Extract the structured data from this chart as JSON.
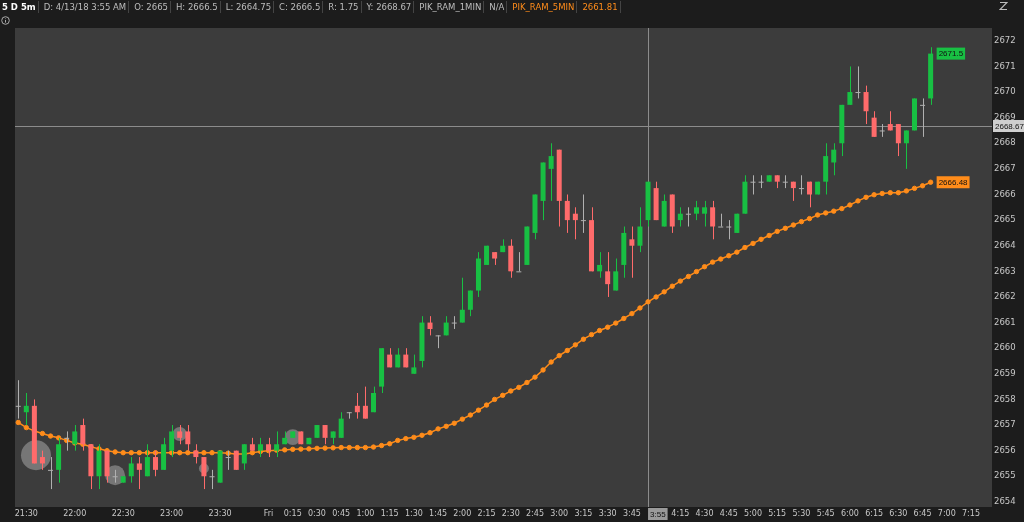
{
  "chart_data": {
    "type": "candlestick",
    "title": "5 D 5m",
    "annotations": [
      "D: 4/13/18 3:55 AM",
      "O: 2665",
      "H: 2666.5",
      "L: 2664.75",
      "C: 2666.5",
      "R: 1.75",
      "Y: 2668.67",
      "PIK_RAM_1MIN",
      "N/A",
      "2661.81",
      {
        "text": "2671.5",
        "x": "--04-13T06:50",
        "y": 2671.5
      },
      {
        "text": "2666.48",
        "x": "--04-13T06:50",
        "y": 2666.48
      }
    ],
    "x": [
      "--04-12T21:25",
      "--04-12T21:30",
      "--04-12T21:35",
      "--04-12T21:40",
      "--04-12T21:45",
      "--04-12T21:50",
      "--04-12T21:55",
      "--04-12T22:00",
      "--04-12T22:05",
      "--04-12T22:10",
      "--04-12T22:15",
      "--04-12T22:20",
      "--04-12T22:25",
      "--04-12T22:30",
      "--04-12T22:35",
      "--04-12T22:40",
      "--04-12T22:45",
      "--04-12T22:50",
      "--04-12T22:55",
      "--04-12T23:00",
      "--04-12T23:05",
      "--04-12T23:10",
      "--04-12T23:15",
      "--04-12T23:20",
      "--04-12T23:25",
      "--04-12T23:30",
      "--04-12T23:35",
      "--04-12T23:40",
      "--04-12T23:45",
      "--04-12T23:50",
      "--04-12T23:55",
      "--04-13T00:00",
      "--04-13T00:05",
      "--04-13T00:10",
      "--04-13T00:15",
      "--04-13T00:20",
      "--04-13T00:25",
      "--04-13T00:30",
      "--04-13T00:35",
      "--04-13T00:40",
      "--04-13T00:45",
      "--04-13T00:50",
      "--04-13T00:55",
      "--04-13T01:00",
      "--04-13T01:05",
      "--04-13T01:10",
      "--04-13T01:15",
      "--04-13T01:20",
      "--04-13T01:25",
      "--04-13T01:30",
      "--04-13T01:35",
      "--04-13T01:40",
      "--04-13T01:45",
      "--04-13T01:50",
      "--04-13T01:55",
      "--04-13T02:00",
      "--04-13T02:05",
      "--04-13T02:10",
      "--04-13T02:15",
      "--04-13T02:20",
      "--04-13T02:25",
      "--04-13T02:30",
      "--04-13T02:35",
      "--04-13T02:40",
      "--04-13T02:45",
      "--04-13T02:50",
      "--04-13T02:55",
      "--04-13T03:00",
      "--04-13T03:05",
      "--04-13T03:10",
      "--04-13T03:15",
      "--04-13T03:20",
      "--04-13T03:25",
      "--04-13T03:30",
      "--04-13T03:35",
      "--04-13T03:40",
      "--04-13T03:45",
      "--04-13T03:50",
      "--04-13T03:55",
      "--04-13T04:00",
      "--04-13T04:05",
      "--04-13T04:10",
      "--04-13T04:15",
      "--04-13T04:20",
      "--04-13T04:25",
      "--04-13T04:30",
      "--04-13T04:35",
      "--04-13T04:40",
      "--04-13T04:45",
      "--04-13T04:50",
      "--04-13T04:55",
      "--04-13T05:00",
      "--04-13T05:05",
      "--04-13T05:10",
      "--04-13T05:15",
      "--04-13T05:20",
      "--04-13T05:25",
      "--04-13T05:30",
      "--04-13T05:35",
      "--04-13T05:40",
      "--04-13T05:45",
      "--04-13T05:50",
      "--04-13T05:55",
      "--04-13T06:00",
      "--04-13T06:05",
      "--04-13T06:10",
      "--04-13T06:15",
      "--04-13T06:20",
      "--04-13T06:25",
      "--04-13T06:30",
      "--04-13T06:35",
      "--04-13T06:40",
      "--04-13T06:45",
      "--04-13T06:50"
    ],
    "ohlc": [
      [
        2657.75,
        2658.75,
        2657.25,
        2657.75
      ],
      [
        2657.5,
        2658.25,
        2657,
        2657.75
      ],
      [
        2657.75,
        2658,
        2655.5,
        2655.5
      ],
      [
        2655.75,
        2656,
        2655.25,
        2655.5
      ],
      [
        2655.25,
        2655.75,
        2654.5,
        2655.25
      ],
      [
        2655.25,
        2656.5,
        2654.75,
        2656.25
      ],
      [
        2656.5,
        2656.75,
        2656,
        2656.5
      ],
      [
        2656.25,
        2657,
        2656,
        2656.75
      ],
      [
        2657,
        2657.25,
        2656,
        2656.25
      ],
      [
        2656.25,
        2656.25,
        2654.5,
        2655
      ],
      [
        2655,
        2656.25,
        2654.5,
        2656
      ],
      [
        2656,
        2656,
        2654.75,
        2655
      ],
      [
        2655,
        2655.25,
        2654.75,
        2655
      ],
      [
        2654.75,
        2655,
        2654.75,
        2655
      ],
      [
        2655,
        2655.75,
        2654.75,
        2655.5
      ],
      [
        2655.5,
        2655.75,
        2654.5,
        2655.25
      ],
      [
        2655,
        2656.25,
        2655,
        2655.75
      ],
      [
        2655.75,
        2656,
        2655,
        2655.25
      ],
      [
        2655.25,
        2656.5,
        2655.25,
        2656.25
      ],
      [
        2656,
        2657,
        2655.75,
        2656.75
      ],
      [
        2656.75,
        2657,
        2656.25,
        2656.5
      ],
      [
        2656.75,
        2657,
        2656,
        2656.25
      ],
      [
        2656,
        2656.25,
        2655.5,
        2655.75
      ],
      [
        2655.75,
        2655.75,
        2654.5,
        2655
      ],
      [
        2655,
        2655.25,
        2654.5,
        2655
      ],
      [
        2654.75,
        2656,
        2654.75,
        2656
      ],
      [
        2655.75,
        2656,
        2655.25,
        2655.75
      ],
      [
        2656,
        2656,
        2655.25,
        2655.25
      ],
      [
        2655.5,
        2656.25,
        2655.25,
        2656.25
      ],
      [
        2656.25,
        2656.5,
        2656,
        2656
      ],
      [
        2656,
        2656.5,
        2655.75,
        2656.25
      ],
      [
        2656.25,
        2656.5,
        2655.75,
        2656
      ],
      [
        2656,
        2656.75,
        2655.75,
        2656.25
      ],
      [
        2656.25,
        2656.75,
        2656.25,
        2656.5
      ],
      [
        2656.5,
        2656.75,
        2656.5,
        2656.75
      ],
      [
        2656.75,
        2656.75,
        2656.25,
        2656.25
      ],
      [
        2656.25,
        2656.5,
        2656.25,
        2656.5
      ],
      [
        2656.5,
        2657,
        2656.5,
        2657
      ],
      [
        2657,
        2657,
        2656.25,
        2656.5
      ],
      [
        2656.5,
        2656.75,
        2656.25,
        2656.75
      ],
      [
        2656.5,
        2657.5,
        2656.5,
        2657.25
      ],
      [
        2657.5,
        2657.5,
        2657.25,
        2657.5
      ],
      [
        2657.75,
        2658.25,
        2657.25,
        2657.5
      ],
      [
        2657.75,
        2658.5,
        2657.25,
        2657.25
      ],
      [
        2657.5,
        2658.5,
        2657.5,
        2658.25
      ],
      [
        2658.5,
        2660,
        2658.25,
        2660
      ],
      [
        2659.75,
        2660,
        2659.25,
        2659.25
      ],
      [
        2659.25,
        2660,
        2659.25,
        2659.75
      ],
      [
        2659.75,
        2660,
        2659.25,
        2659.25
      ],
      [
        2659,
        2659.75,
        2659,
        2659.25
      ],
      [
        2659.5,
        2661.25,
        2659.25,
        2661
      ],
      [
        2661,
        2661.25,
        2660.5,
        2660.75
      ],
      [
        2660.5,
        2660.5,
        2660,
        2660.5
      ],
      [
        2660.5,
        2661.25,
        2660.5,
        2661
      ],
      [
        2661,
        2661.25,
        2660.75,
        2661
      ],
      [
        2661,
        2662.75,
        2661,
        2661.5
      ],
      [
        2661.5,
        2662.25,
        2661.25,
        2662.25
      ],
      [
        2662.25,
        2663.75,
        2662,
        2663.5
      ],
      [
        2663.25,
        2664,
        2663.25,
        2664
      ],
      [
        2663.75,
        2663.75,
        2663.25,
        2663.5
      ],
      [
        2663.75,
        2664.25,
        2663.75,
        2664
      ],
      [
        2664,
        2664.25,
        2662.75,
        2663
      ],
      [
        2663,
        2663.75,
        2663,
        2663
      ],
      [
        2663.25,
        2664.75,
        2663.25,
        2664.75
      ],
      [
        2664.5,
        2666,
        2664.25,
        2666
      ],
      [
        2665.75,
        2667.25,
        2665,
        2667.25
      ],
      [
        2667,
        2668,
        2665.75,
        2667.5
      ],
      [
        2667.75,
        2667.75,
        2664.75,
        2665.75
      ],
      [
        2665.75,
        2666,
        2664.5,
        2665
      ],
      [
        2665.25,
        2665.5,
        2664.25,
        2665
      ],
      [
        2665,
        2666,
        2664.5,
        2665
      ],
      [
        2665,
        2665.5,
        2663,
        2663
      ],
      [
        2663,
        2663.75,
        2662.75,
        2663.25
      ],
      [
        2663,
        2663.75,
        2662,
        2662.5
      ],
      [
        2662.25,
        2663.5,
        2662.25,
        2663
      ],
      [
        2663.25,
        2664.75,
        2662.75,
        2664.5
      ],
      [
        2664.25,
        2664.75,
        2662.75,
        2664
      ],
      [
        2664,
        2665.5,
        2663.75,
        2664.75
      ],
      [
        2665,
        2666.5,
        2664.75,
        2666.5
      ],
      [
        2666.25,
        2666.5,
        2665,
        2665
      ],
      [
        2664.75,
        2666,
        2664.75,
        2665.75
      ],
      [
        2666,
        2666,
        2664.5,
        2664.75
      ],
      [
        2665,
        2665.5,
        2664.75,
        2665.25
      ],
      [
        2665.25,
        2665.5,
        2664.75,
        2665.25
      ],
      [
        2665.25,
        2665.75,
        2665,
        2665.5
      ],
      [
        2665.25,
        2665.75,
        2664.75,
        2665.5
      ],
      [
        2665.5,
        2665.75,
        2664.25,
        2664.75
      ],
      [
        2664.75,
        2665.25,
        2664.75,
        2664.75
      ],
      [
        2664.75,
        2665,
        2664.25,
        2664.75
      ],
      [
        2664.5,
        2665.25,
        2664.5,
        2665.25
      ],
      [
        2665.25,
        2666.75,
        2665.25,
        2666.5
      ],
      [
        2666.5,
        2666.75,
        2666,
        2666.5
      ],
      [
        2666.5,
        2666.75,
        2666.25,
        2666.5
      ],
      [
        2666.5,
        2666.75,
        2666.5,
        2666.75
      ],
      [
        2666.75,
        2666.75,
        2666.25,
        2666.5
      ],
      [
        2666.5,
        2666.75,
        2666.25,
        2666.5
      ],
      [
        2666.5,
        2666.5,
        2665.75,
        2666.25
      ],
      [
        2666.25,
        2666.75,
        2666,
        2666.25
      ],
      [
        2666.5,
        2666.5,
        2665.5,
        2666
      ],
      [
        2666,
        2666.5,
        2666,
        2666.5
      ],
      [
        2666.5,
        2668,
        2666,
        2667.5
      ],
      [
        2667.25,
        2668,
        2666.75,
        2667.75
      ],
      [
        2668,
        2669.5,
        2667.5,
        2669.5
      ],
      [
        2669.5,
        2671,
        2669.5,
        2670
      ],
      [
        2670,
        2671,
        2669.75,
        2670
      ],
      [
        2670,
        2670.25,
        2668.75,
        2669.25
      ],
      [
        2669,
        2669.25,
        2668.25,
        2668.25
      ],
      [
        2668.5,
        2668.75,
        2668.25,
        2668.5
      ],
      [
        2668.75,
        2669.25,
        2668.5,
        2668.5
      ],
      [
        2668.75,
        2668.75,
        2667.5,
        2668
      ],
      [
        2668,
        2668.5,
        2667,
        2668.5
      ],
      [
        2668.5,
        2669.75,
        2668.5,
        2669.75
      ],
      [
        2669.5,
        2669.75,
        2668.25,
        2669.5
      ],
      [
        2669.75,
        2671.75,
        2669.5,
        2671.5
      ]
    ],
    "colors": [
      "#b0b0b0",
      "#18c043",
      "#ff6b6b",
      "#ff6b6b",
      "#b0b0b0",
      "#18c043",
      "#b0b0b0",
      "#18c043",
      "#ff6b6b",
      "#ff6b6b",
      "#18c043",
      "#ff6b6b",
      "#b0b0b0",
      "#18c043",
      "#18c043",
      "#ff6b6b",
      "#18c043",
      "#ff6b6b",
      "#18c043",
      "#18c043",
      "#ff6b6b",
      "#ff6b6b",
      "#ff6b6b",
      "#ff6b6b",
      "#b0b0b0",
      "#18c043",
      "#b0b0b0",
      "#ff6b6b",
      "#18c043",
      "#ff6b6b",
      "#18c043",
      "#ff6b6b",
      "#18c043",
      "#18c043",
      "#18c043",
      "#ff6b6b",
      "#18c043",
      "#18c043",
      "#ff6b6b",
      "#18c043",
      "#18c043",
      "#b0b0b0",
      "#ff6b6b",
      "#ff6b6b",
      "#18c043",
      "#18c043",
      "#ff6b6b",
      "#18c043",
      "#ff6b6b",
      "#18c043",
      "#18c043",
      "#ff6b6b",
      "#b0b0b0",
      "#18c043",
      "#b0b0b0",
      "#18c043",
      "#18c043",
      "#18c043",
      "#18c043",
      "#ff6b6b",
      "#18c043",
      "#ff6b6b",
      "#b0b0b0",
      "#18c043",
      "#18c043",
      "#18c043",
      "#18c043",
      "#ff6b6b",
      "#ff6b6b",
      "#ff6b6b",
      "#b0b0b0",
      "#ff6b6b",
      "#18c043",
      "#ff6b6b",
      "#18c043",
      "#18c043",
      "#ff6b6b",
      "#18c043",
      "#18c043",
      "#ff6b6b",
      "#18c043",
      "#ff6b6b",
      "#18c043",
      "#b0b0b0",
      "#18c043",
      "#18c043",
      "#ff6b6b",
      "#b0b0b0",
      "#b0b0b0",
      "#18c043",
      "#18c043",
      "#b0b0b0",
      "#b0b0b0",
      "#18c043",
      "#ff6b6b",
      "#b0b0b0",
      "#ff6b6b",
      "#b0b0b0",
      "#ff6b6b",
      "#18c043",
      "#18c043",
      "#18c043",
      "#18c043",
      "#18c043",
      "#b0b0b0",
      "#ff6b6b",
      "#ff6b6b",
      "#b0b0b0",
      "#ff6b6b",
      "#ff6b6b",
      "#18c043",
      "#18c043",
      "#b0b0b0",
      "#18c043"
    ],
    "series": [
      {
        "type": "line",
        "name": "PIK_RAM_5MIN",
        "color": "#ff8c1a",
        "marker": "circle",
        "values": [
          2657.1,
          2656.9,
          2656.77,
          2656.67,
          2656.57,
          2656.5,
          2656.4,
          2656.3,
          2656.25,
          2656.15,
          2656.07,
          2656,
          2655.95,
          2655.92,
          2655.92,
          2655.92,
          2655.92,
          2655.92,
          2655.92,
          2655.92,
          2655.92,
          2655.92,
          2655.92,
          2655.92,
          2655.92,
          2655.92,
          2655.9,
          2655.87,
          2655.87,
          2655.92,
          2655.97,
          2656,
          2656.02,
          2656.03,
          2656.05,
          2656.06,
          2656.07,
          2656.09,
          2656.1,
          2656.11,
          2656.12,
          2656.12,
          2656.12,
          2656.12,
          2656.14,
          2656.2,
          2656.27,
          2656.4,
          2656.47,
          2656.52,
          2656.6,
          2656.7,
          2656.85,
          2656.95,
          2657.07,
          2657.23,
          2657.39,
          2657.58,
          2657.78,
          2658,
          2658.16,
          2658.33,
          2658.47,
          2658.66,
          2658.87,
          2659.15,
          2659.46,
          2659.71,
          2659.91,
          2660.13,
          2660.35,
          2660.53,
          2660.69,
          2660.82,
          2660.98,
          2661.16,
          2661.35,
          2661.57,
          2661.81,
          2662,
          2662.2,
          2662.42,
          2662.62,
          2662.8,
          2662.99,
          2663.18,
          2663.36,
          2663.48,
          2663.61,
          2663.75,
          2663.93,
          2664.09,
          2664.25,
          2664.4,
          2664.56,
          2664.68,
          2664.81,
          2664.94,
          2665.06,
          2665.2,
          2665.28,
          2665.35,
          2665.45,
          2665.59,
          2665.75,
          2665.89,
          2665.99,
          2666.04,
          2666.07,
          2666.07,
          2666.14,
          2666.24,
          2666.34,
          2666.48
        ]
      },
      {
        "type": "bubble",
        "color": "#bdbdbd",
        "x": [
          "--04-12T21:36",
          "--04-12T22:25",
          "--04-12T23:05",
          "--04-12T23:20",
          "--04-13T00:15"
        ],
        "values": [
          2655.82,
          2655.04,
          2656.65,
          2655.3,
          2656.53
        ],
        "sizes": [
          1,
          0.44,
          0.22,
          0.11,
          0.28
        ]
      }
    ],
    "ref_lines": [
      {
        "axis": "x",
        "value": "--04-13T03:55",
        "label": "3:55"
      },
      {
        "axis": "y",
        "value": 2668.67,
        "label": "2668.67"
      }
    ],
    "xlim": [
      "--04-12T21:23",
      "--04-13T07:28"
    ],
    "xticks": [
      {
        "value": "--04-12T21:30",
        "label": "21:30"
      },
      {
        "value": "--04-12T22:00",
        "label": "22:00"
      },
      {
        "value": "--04-12T22:30",
        "label": "22:30"
      },
      {
        "value": "--04-12T23:00",
        "label": "23:00"
      },
      {
        "value": "--04-12T23:30",
        "label": "23:30"
      },
      {
        "value": "--04-13T00:00",
        "label": "Fri"
      },
      {
        "value": "--04-13T00:15",
        "label": "0:15"
      },
      {
        "value": "--04-13T00:30",
        "label": "0:30"
      },
      {
        "value": "--04-13T00:45",
        "label": "0:45"
      },
      {
        "value": "--04-13T01:00",
        "label": "1:00"
      },
      {
        "value": "--04-13T01:15",
        "label": "1:15"
      },
      {
        "value": "--04-13T01:30",
        "label": "1:30"
      },
      {
        "value": "--04-13T01:45",
        "label": "1:45"
      },
      {
        "value": "--04-13T02:00",
        "label": "2:00"
      },
      {
        "value": "--04-13T02:15",
        "label": "2:15"
      },
      {
        "value": "--04-13T02:30",
        "label": "2:30"
      },
      {
        "value": "--04-13T02:45",
        "label": "2:45"
      },
      {
        "value": "--04-13T03:00",
        "label": "3:00"
      },
      {
        "value": "--04-13T03:15",
        "label": "3:15"
      },
      {
        "value": "--04-13T03:30",
        "label": "3:30"
      },
      {
        "value": "--04-13T03:45",
        "label": "3:45"
      },
      {
        "value": "--04-13T04:15",
        "label": "4:15"
      },
      {
        "value": "--04-13T04:30",
        "label": "4:30"
      },
      {
        "value": "--04-13T04:45",
        "label": "4:45"
      },
      {
        "value": "--04-13T05:00",
        "label": "5:00"
      },
      {
        "value": "--04-13T05:15",
        "label": "5:15"
      },
      {
        "value": "--04-13T05:30",
        "label": "5:30"
      },
      {
        "value": "--04-13T05:45",
        "label": "5:45"
      },
      {
        "value": "--04-13T06:00",
        "label": "6:00"
      },
      {
        "value": "--04-13T06:15",
        "label": "6:15"
      },
      {
        "value": "--04-13T06:30",
        "label": "6:30"
      },
      {
        "value": "--04-13T06:45",
        "label": "6:45"
      },
      {
        "value": "--04-13T07:00",
        "label": "7:00"
      },
      {
        "value": "--04-13T07:15",
        "label": "7:15"
      }
    ],
    "ylim": [
      2653.8,
      2672.5
    ],
    "yticks": [
      2654,
      2655,
      2656,
      2657,
      2658,
      2659,
      2660,
      2661,
      2662,
      2663,
      2664,
      2665,
      2666,
      2667,
      2668,
      2669,
      2670,
      2671,
      2672
    ]
  }
}
